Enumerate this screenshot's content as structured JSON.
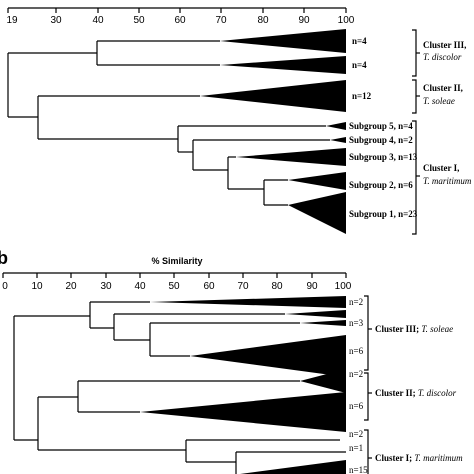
{
  "panel_a": {
    "axis_ticks": [
      "19",
      "30",
      "40",
      "50",
      "60",
      "70",
      "80",
      "90",
      "100"
    ],
    "leaves": [
      {
        "bold": "",
        "n": "n=4"
      },
      {
        "bold": "",
        "n": "n=4"
      },
      {
        "bold": "",
        "n": "n=12"
      },
      {
        "bold": "Subgroup 5, ",
        "n": "n=4"
      },
      {
        "bold": "Subgroup 4, ",
        "n": "n=2"
      },
      {
        "bold": "Subgroup 3, ",
        "n": "n=13"
      },
      {
        "bold": "Subgroup 2, ",
        "n": "n=6"
      },
      {
        "bold": "Subgroup 1, ",
        "n": "n=23"
      }
    ],
    "clusters": [
      {
        "name": "Cluster III,",
        "species": "T. discolor"
      },
      {
        "name": "Cluster II,",
        "species": "T. soleae"
      },
      {
        "name": "Cluster I,",
        "species": "T. maritimum"
      }
    ]
  },
  "panel_b": {
    "letter": "b",
    "axis_title": "% Similarity",
    "axis_ticks": [
      "0",
      "10",
      "20",
      "30",
      "40",
      "50",
      "60",
      "70",
      "80",
      "90",
      "100"
    ],
    "leaves": [
      {
        "n": "n=2"
      },
      {
        "n": "n=3"
      },
      {
        "n": "n=6"
      },
      {
        "n": "n=2"
      },
      {
        "n": "n=6"
      },
      {
        "n": "n=2"
      },
      {
        "n": "n=1"
      },
      {
        "n": "n=15"
      }
    ],
    "clusters": [
      {
        "name": "Cluster III",
        "species": "T. soleae"
      },
      {
        "name": "Cluster II",
        "species": "T. discolor"
      },
      {
        "name": "Cluster I",
        "species": "T. maritimum"
      }
    ]
  }
}
